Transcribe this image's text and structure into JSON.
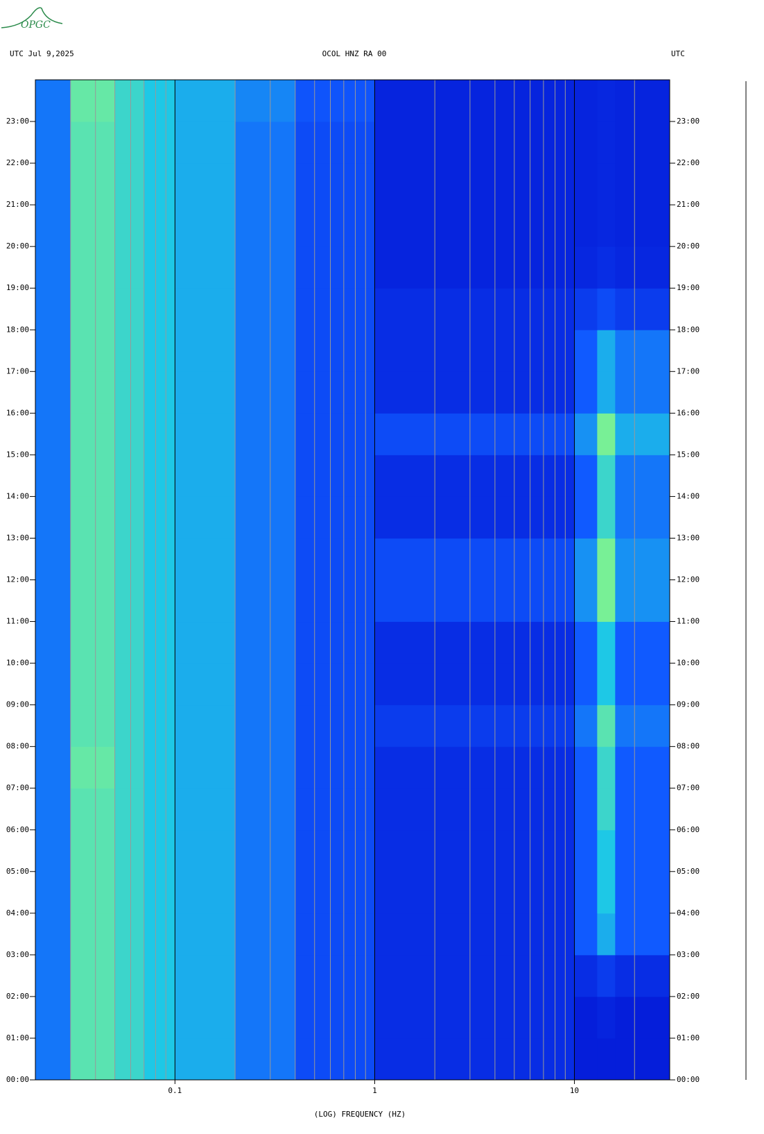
{
  "logo": "OPGC",
  "chart_data": {
    "type": "spectrogram",
    "title": "OCOL HNZ RA 00",
    "left_header": "UTC  Jul 9,2025",
    "right_header": "UTC",
    "xlabel": "(LOG) FREQUENCY (HZ)",
    "xlog": true,
    "xlim": [
      0.02,
      30
    ],
    "xticks": [
      0.1,
      1,
      10
    ],
    "xminorticks": [
      0.02,
      0.03,
      0.04,
      0.05,
      0.06,
      0.07,
      0.08,
      0.09,
      0.2,
      0.3,
      0.4,
      0.5,
      0.6,
      0.7,
      0.8,
      0.9,
      2,
      3,
      4,
      5,
      6,
      7,
      8,
      9,
      20
    ],
    "ylim": [
      0,
      24
    ],
    "yticks": [
      {
        "value": 0,
        "label": "00:00"
      },
      {
        "value": 1,
        "label": "01:00"
      },
      {
        "value": 2,
        "label": "02:00"
      },
      {
        "value": 3,
        "label": "03:00"
      },
      {
        "value": 4,
        "label": "04:00"
      },
      {
        "value": 5,
        "label": "05:00"
      },
      {
        "value": 6,
        "label": "06:00"
      },
      {
        "value": 7,
        "label": "07:00"
      },
      {
        "value": 8,
        "label": "08:00"
      },
      {
        "value": 9,
        "label": "09:00"
      },
      {
        "value": 10,
        "label": "10:00"
      },
      {
        "value": 11,
        "label": "11:00"
      },
      {
        "value": 12,
        "label": "12:00"
      },
      {
        "value": 13,
        "label": "13:00"
      },
      {
        "value": 14,
        "label": "14:00"
      },
      {
        "value": 15,
        "label": "15:00"
      },
      {
        "value": 16,
        "label": "16:00"
      },
      {
        "value": 17,
        "label": "17:00"
      },
      {
        "value": 18,
        "label": "18:00"
      },
      {
        "value": 19,
        "label": "19:00"
      },
      {
        "value": 20,
        "label": "20:00"
      },
      {
        "value": 21,
        "label": "21:00"
      },
      {
        "value": 22,
        "label": "22:00"
      },
      {
        "value": 23,
        "label": "23:00"
      }
    ],
    "band_edges": [
      0.02,
      0.03,
      0.05,
      0.07,
      0.1,
      0.2,
      0.4,
      1,
      10,
      13,
      16,
      30
    ],
    "intensity": [
      [
        0.35,
        0.6,
        0.55,
        0.5,
        0.45,
        0.35,
        0.25,
        0.15,
        0.1,
        0.1,
        0.1
      ],
      [
        0.35,
        0.6,
        0.55,
        0.5,
        0.45,
        0.35,
        0.25,
        0.15,
        0.1,
        0.12,
        0.1
      ],
      [
        0.35,
        0.6,
        0.55,
        0.5,
        0.45,
        0.35,
        0.25,
        0.15,
        0.15,
        0.2,
        0.15
      ],
      [
        0.35,
        0.6,
        0.55,
        0.5,
        0.45,
        0.35,
        0.25,
        0.15,
        0.3,
        0.45,
        0.3
      ],
      [
        0.35,
        0.6,
        0.55,
        0.5,
        0.45,
        0.35,
        0.25,
        0.15,
        0.3,
        0.5,
        0.3
      ],
      [
        0.35,
        0.6,
        0.55,
        0.5,
        0.45,
        0.35,
        0.25,
        0.15,
        0.3,
        0.5,
        0.3
      ],
      [
        0.35,
        0.6,
        0.55,
        0.5,
        0.45,
        0.35,
        0.25,
        0.15,
        0.3,
        0.55,
        0.3
      ],
      [
        0.35,
        0.62,
        0.55,
        0.5,
        0.45,
        0.35,
        0.25,
        0.15,
        0.3,
        0.55,
        0.3
      ],
      [
        0.35,
        0.6,
        0.55,
        0.5,
        0.45,
        0.35,
        0.25,
        0.2,
        0.35,
        0.6,
        0.35
      ],
      [
        0.35,
        0.6,
        0.55,
        0.5,
        0.45,
        0.35,
        0.25,
        0.15,
        0.3,
        0.5,
        0.3
      ],
      [
        0.35,
        0.6,
        0.55,
        0.5,
        0.45,
        0.35,
        0.25,
        0.15,
        0.3,
        0.5,
        0.3
      ],
      [
        0.35,
        0.6,
        0.55,
        0.5,
        0.45,
        0.35,
        0.25,
        0.25,
        0.4,
        0.65,
        0.4
      ],
      [
        0.35,
        0.6,
        0.55,
        0.5,
        0.45,
        0.35,
        0.25,
        0.25,
        0.4,
        0.65,
        0.4
      ],
      [
        0.35,
        0.6,
        0.55,
        0.5,
        0.45,
        0.35,
        0.25,
        0.15,
        0.3,
        0.55,
        0.35
      ],
      [
        0.35,
        0.6,
        0.55,
        0.5,
        0.45,
        0.35,
        0.25,
        0.15,
        0.3,
        0.55,
        0.35
      ],
      [
        0.35,
        0.6,
        0.55,
        0.5,
        0.45,
        0.35,
        0.25,
        0.25,
        0.4,
        0.65,
        0.45
      ],
      [
        0.35,
        0.6,
        0.55,
        0.5,
        0.45,
        0.35,
        0.25,
        0.15,
        0.3,
        0.45,
        0.35
      ],
      [
        0.35,
        0.6,
        0.55,
        0.5,
        0.45,
        0.35,
        0.25,
        0.15,
        0.3,
        0.45,
        0.35
      ],
      [
        0.35,
        0.6,
        0.55,
        0.5,
        0.45,
        0.35,
        0.25,
        0.15,
        0.2,
        0.25,
        0.2
      ],
      [
        0.35,
        0.6,
        0.55,
        0.5,
        0.45,
        0.35,
        0.25,
        0.12,
        0.13,
        0.15,
        0.13
      ],
      [
        0.35,
        0.6,
        0.55,
        0.5,
        0.45,
        0.35,
        0.25,
        0.12,
        0.12,
        0.13,
        0.12
      ],
      [
        0.35,
        0.6,
        0.55,
        0.5,
        0.45,
        0.35,
        0.25,
        0.12,
        0.12,
        0.13,
        0.12
      ],
      [
        0.35,
        0.6,
        0.55,
        0.5,
        0.45,
        0.35,
        0.25,
        0.12,
        0.12,
        0.13,
        0.12
      ],
      [
        0.35,
        0.62,
        0.55,
        0.5,
        0.45,
        0.38,
        0.28,
        0.12,
        0.12,
        0.13,
        0.12
      ]
    ]
  }
}
